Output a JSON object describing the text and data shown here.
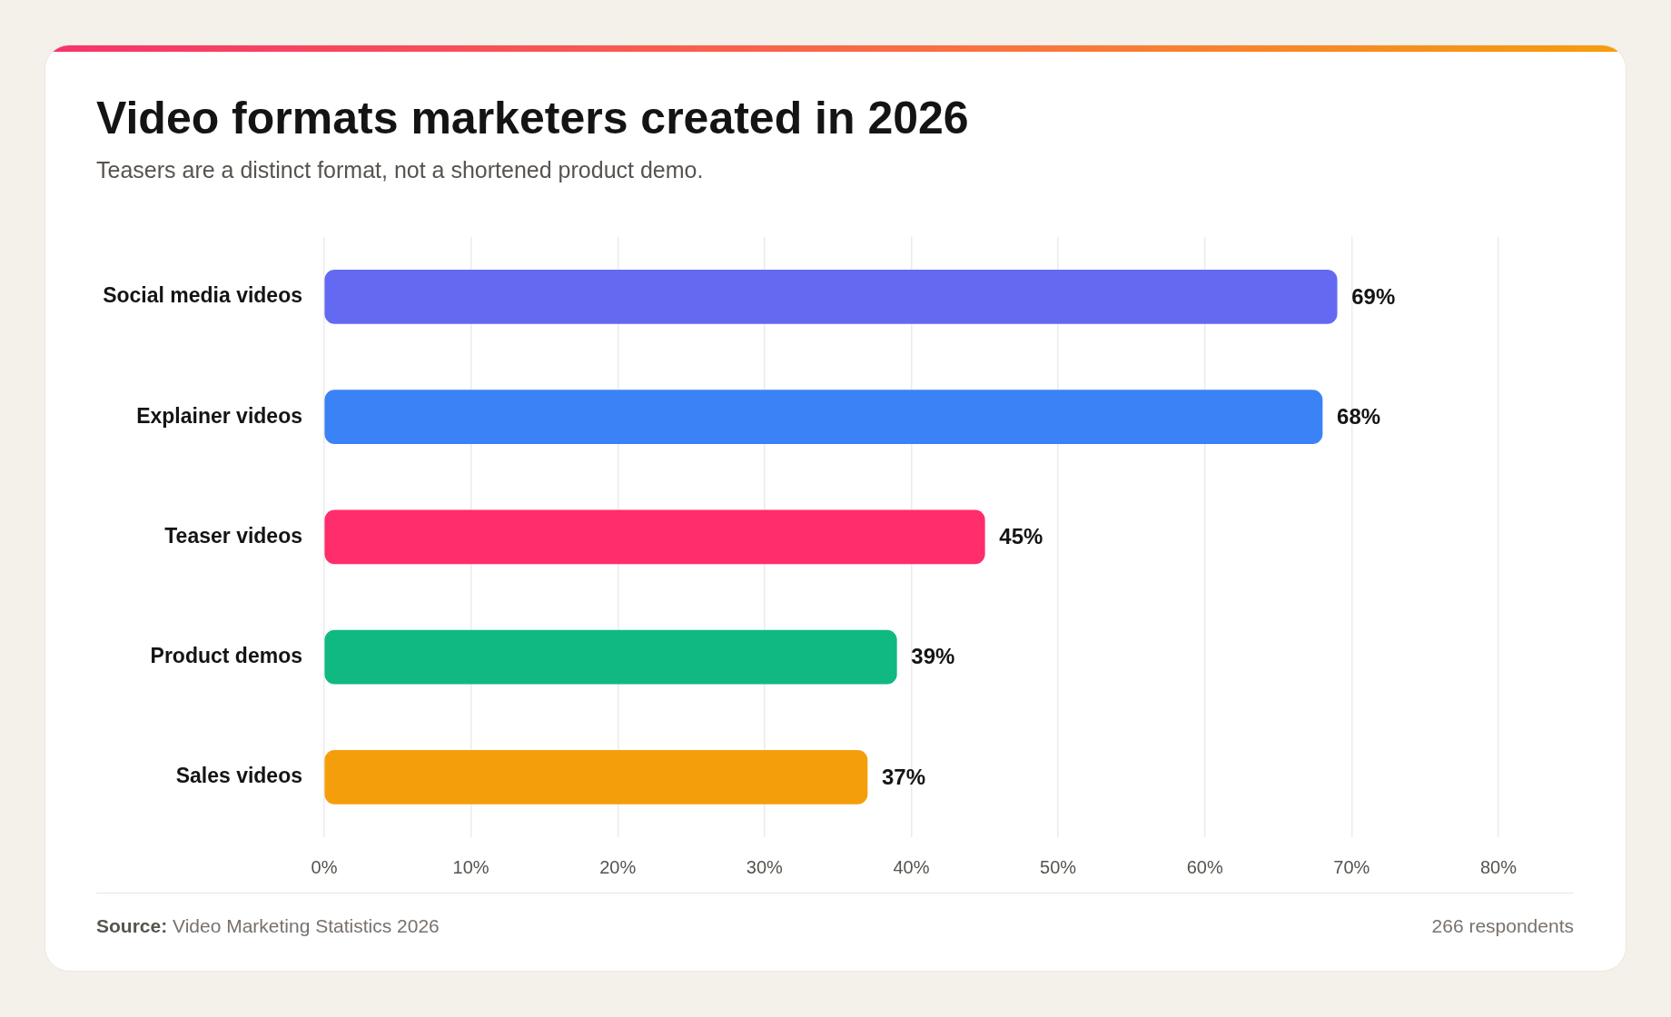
{
  "chart_data": {
    "type": "bar",
    "orientation": "horizontal",
    "title": "Video formats marketers created in 2026",
    "subtitle": "Teasers are a distinct format, not a shortened product demo.",
    "categories": [
      "Social media videos",
      "Explainer videos",
      "Teaser videos",
      "Product demos",
      "Sales videos"
    ],
    "values": [
      69,
      68,
      45,
      39,
      37
    ],
    "colors": [
      "#6469f1",
      "#3b82f6",
      "#ff2d6b",
      "#10b981",
      "#f59e0b"
    ],
    "value_labels": [
      "69%",
      "68%",
      "45%",
      "39%",
      "37%"
    ],
    "xlim": [
      0,
      80
    ],
    "xticks": [
      {
        "value": 0,
        "label": "0%"
      },
      {
        "value": 10,
        "label": "10%"
      },
      {
        "value": 20,
        "label": "20%"
      },
      {
        "value": 30,
        "label": "30%"
      },
      {
        "value": 40,
        "label": "40%"
      },
      {
        "value": 50,
        "label": "50%"
      },
      {
        "value": 60,
        "label": "60%"
      },
      {
        "value": 70,
        "label": "70%"
      },
      {
        "value": 80,
        "label": "80%"
      }
    ],
    "grid": "x",
    "legend": false,
    "annotations": [
      "Source: Video Marketing Statistics 2026",
      "266 respondents"
    ]
  }
}
